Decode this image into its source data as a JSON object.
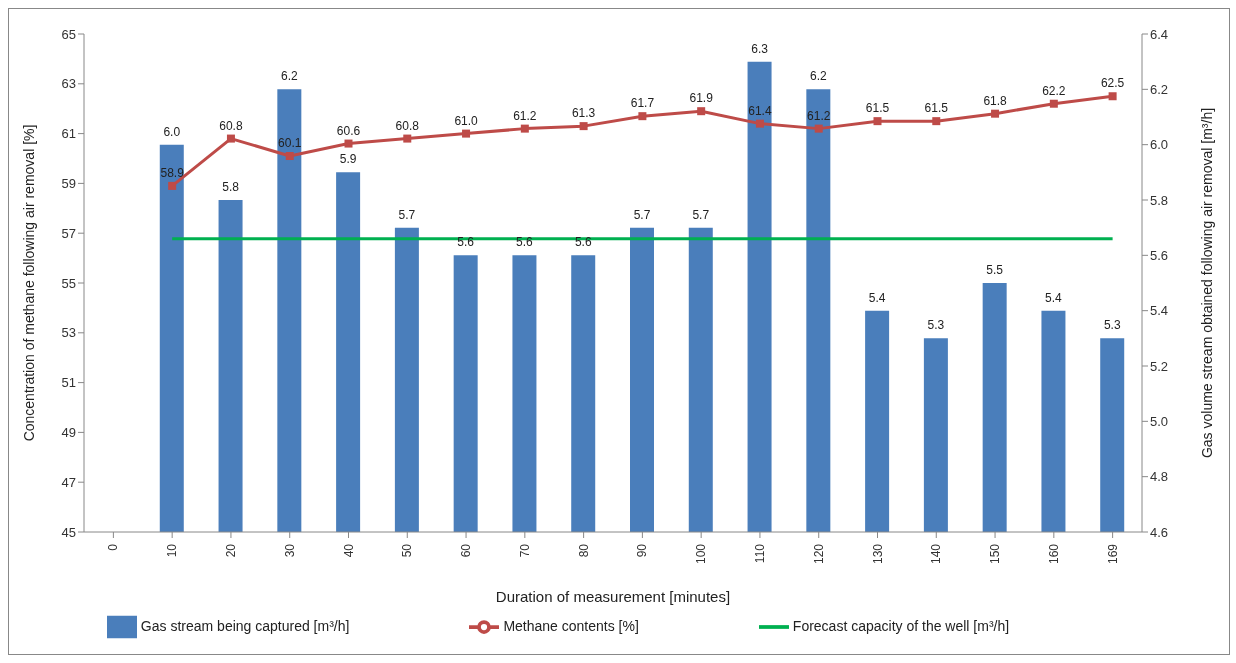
{
  "chart_data": {
    "type": "bar",
    "xlabel": "Duration of measurement [minutes]",
    "ylabel": "Concentration of methane following air removal [%]",
    "y2label": "Gas volume stream obtained following air removal [m³/h]",
    "categories": [
      "0",
      "10",
      "20",
      "30",
      "40",
      "50",
      "60",
      "70",
      "80",
      "90",
      "100",
      "110",
      "120",
      "130",
      "140",
      "150",
      "160",
      "169"
    ],
    "series": [
      {
        "name": "Gas stream being captured [m³/h]",
        "axis": "y2",
        "color": "#4a7ebb",
        "values": [
          null,
          6.0,
          5.8,
          6.2,
          5.9,
          5.7,
          5.6,
          5.6,
          5.6,
          5.7,
          5.7,
          6.3,
          6.2,
          5.4,
          5.3,
          5.5,
          5.4,
          5.3
        ],
        "value_labels": [
          null,
          "6.0",
          "5.8",
          "6.2",
          "5.9",
          "5.7",
          "5.6",
          "5.6",
          "5.6",
          "5.7",
          "5.7",
          "6.3",
          "6.2",
          "5.4",
          "5.3",
          "5.5",
          "5.4",
          "5.3"
        ]
      },
      {
        "name": "Methane contents [%]",
        "type": "line",
        "axis": "y",
        "color": "#be4b48",
        "marker": "square",
        "values": [
          null,
          58.9,
          60.8,
          60.1,
          60.6,
          60.8,
          61.0,
          61.2,
          61.3,
          61.7,
          61.9,
          61.4,
          61.2,
          61.5,
          61.5,
          61.8,
          62.2,
          62.5
        ],
        "value_labels": [
          null,
          "58.9",
          "60.8",
          "60.1",
          "60.6",
          "60.8",
          "61.0",
          "61.2",
          "61.3",
          "61.7",
          "61.9",
          "61.4",
          "61.2",
          "61.5",
          "61.5",
          "61.8",
          "62.2",
          "62.5"
        ]
      },
      {
        "name": "Forecast capacity of the well [m³/h]",
        "type": "line",
        "axis": "y2",
        "color": "#00b050",
        "marker": "none",
        "values": [
          null,
          5.66,
          5.66,
          5.66,
          5.66,
          5.66,
          5.66,
          5.66,
          5.66,
          5.66,
          5.66,
          5.66,
          5.66,
          5.66,
          5.66,
          5.66,
          5.66,
          5.66
        ]
      }
    ],
    "ylim": [
      45,
      65
    ],
    "yticks": [
      45,
      47,
      49,
      51,
      53,
      55,
      57,
      59,
      61,
      63,
      65
    ],
    "y2lim": [
      4.6,
      6.4
    ],
    "y2ticks": [
      {
        "value": 4.6,
        "label": "4.6"
      },
      {
        "value": 4.8,
        "label": "4.8"
      },
      {
        "value": 5.0,
        "label": "5.0"
      },
      {
        "value": 5.2,
        "label": "5.2"
      },
      {
        "value": 5.4,
        "label": "5.4"
      },
      {
        "value": 5.6,
        "label": "5.6"
      },
      {
        "value": 5.8,
        "label": "5.8"
      },
      {
        "value": 6.0,
        "label": "6.0"
      },
      {
        "value": 6.2,
        "label": "6.2"
      },
      {
        "value": 6.4,
        "label": "6.4"
      }
    ],
    "legend": "bottom",
    "line_style": "solid"
  }
}
